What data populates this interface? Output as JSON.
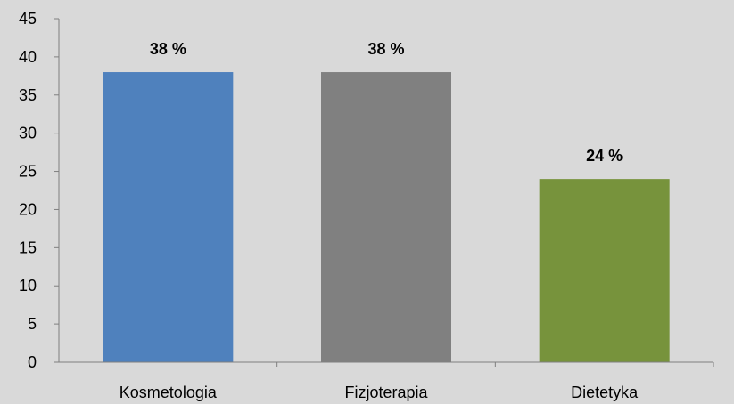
{
  "chart_data": {
    "type": "bar",
    "categories": [
      "Kosmetologia",
      "Fizjoterapia",
      "Dietetyka"
    ],
    "values": [
      38,
      38,
      24
    ],
    "data_labels": [
      "38 %",
      "38 %",
      "24 %"
    ],
    "colors": [
      "#4f81bd",
      "#808080",
      "#77933c"
    ],
    "ylim": [
      0,
      45
    ],
    "yticks": [
      "0",
      "5",
      "10",
      "15",
      "20",
      "25",
      "30",
      "35",
      "40",
      "45"
    ],
    "grid": false,
    "background": "#d9d9d9"
  }
}
